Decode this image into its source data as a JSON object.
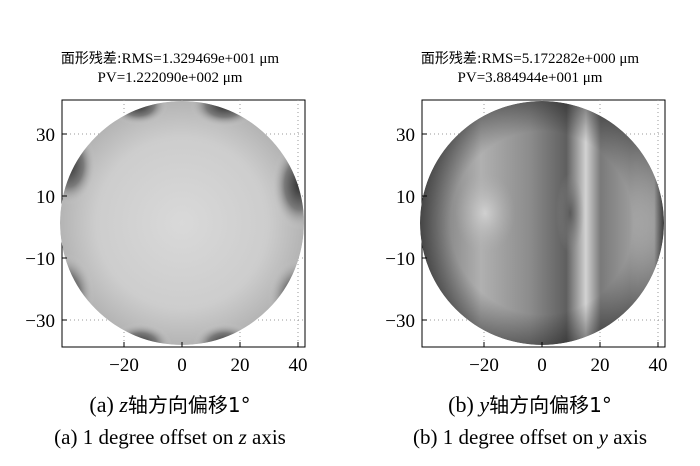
{
  "panels": [
    {
      "id": "a",
      "residual_label": "面形残差:",
      "rms": "RMS=1.329469e+001 μm",
      "pv": "PV=1.222090e+002 μm",
      "xticks": [
        "−20",
        "0",
        "20",
        "40"
      ],
      "yticks": [
        "30",
        "10",
        "−10",
        "−30"
      ],
      "caption_zh": {
        "prefix": "(a) ",
        "axis": "z",
        "rest": "轴方向偏移1°"
      },
      "caption_en": {
        "prefix": "(a) 1 degree offset on ",
        "axis": "z",
        "suffix": " axis"
      },
      "colors": {
        "fill": "#cfcfcf",
        "dark": "#3a3a3a"
      }
    },
    {
      "id": "b",
      "residual_label": "面形残差:",
      "rms": "RMS=5.172282e+000 μm",
      "pv": "PV=3.884944e+001 μm",
      "xticks": [
        "−20",
        "0",
        "20",
        "40"
      ],
      "yticks": [
        "30",
        "10",
        "−10",
        "−30"
      ],
      "caption_zh": {
        "prefix": "(b) ",
        "axis": "y",
        "rest": "轴方向偏移1°"
      },
      "caption_en": {
        "prefix": "(b) 1 degree offset on ",
        "axis": "y",
        "suffix": " axis"
      },
      "colors": {
        "fill": "#8a8a8a",
        "light": "#d8d8d8"
      }
    }
  ]
}
